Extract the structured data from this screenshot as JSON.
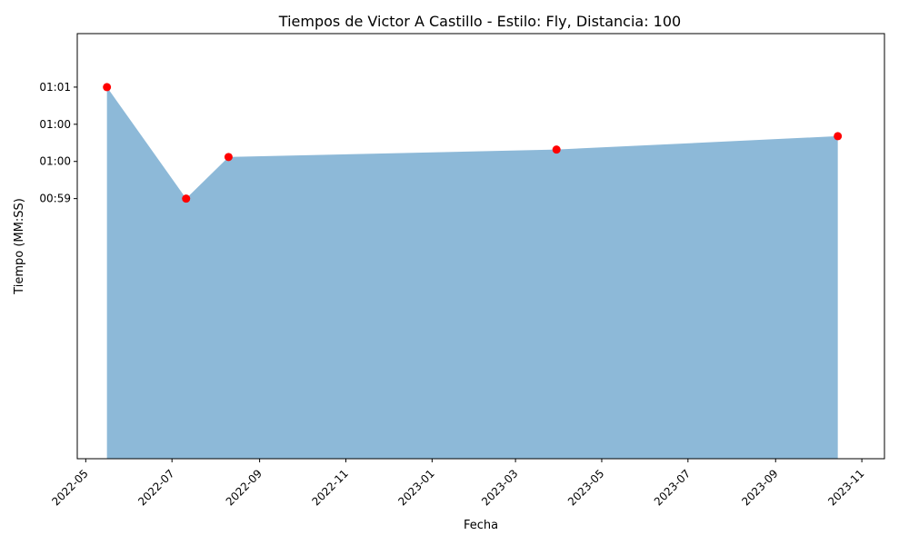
{
  "chart_data": {
    "type": "area",
    "title": "Tiempos de Victor A Castillo - Estilo: Fly, Distancia: 100",
    "xlabel": "Fecha",
    "ylabel": "Tiempo (MM:SS)",
    "x": [
      "2022-05-16",
      "2022-07-11",
      "2022-08-10",
      "2023-03-30",
      "2023-10-15"
    ],
    "y_seconds": [
      61.0,
      59.5,
      60.06,
      60.16,
      60.34
    ],
    "ylim_seconds": [
      56.0,
      61.72
    ],
    "xlim": [
      "2022-04-25",
      "2023-11-17"
    ],
    "x_ticks": [
      "2022-05",
      "2022-07",
      "2022-09",
      "2022-11",
      "2023-01",
      "2023-03",
      "2023-05",
      "2023-07",
      "2023-09",
      "2023-11"
    ],
    "x_tick_dates": [
      "2022-05-01",
      "2022-07-01",
      "2022-09-01",
      "2022-11-01",
      "2023-01-01",
      "2023-03-01",
      "2023-05-01",
      "2023-07-01",
      "2023-09-01",
      "2023-11-01"
    ],
    "y_ticks": [
      "01:01",
      "01:00",
      "01:00",
      "00:59"
    ],
    "y_tick_seconds": [
      61.0,
      60.5,
      60.0,
      59.5
    ],
    "grid": false,
    "colors": {
      "area": "#8db9d8",
      "marker": "#ff0000"
    }
  }
}
